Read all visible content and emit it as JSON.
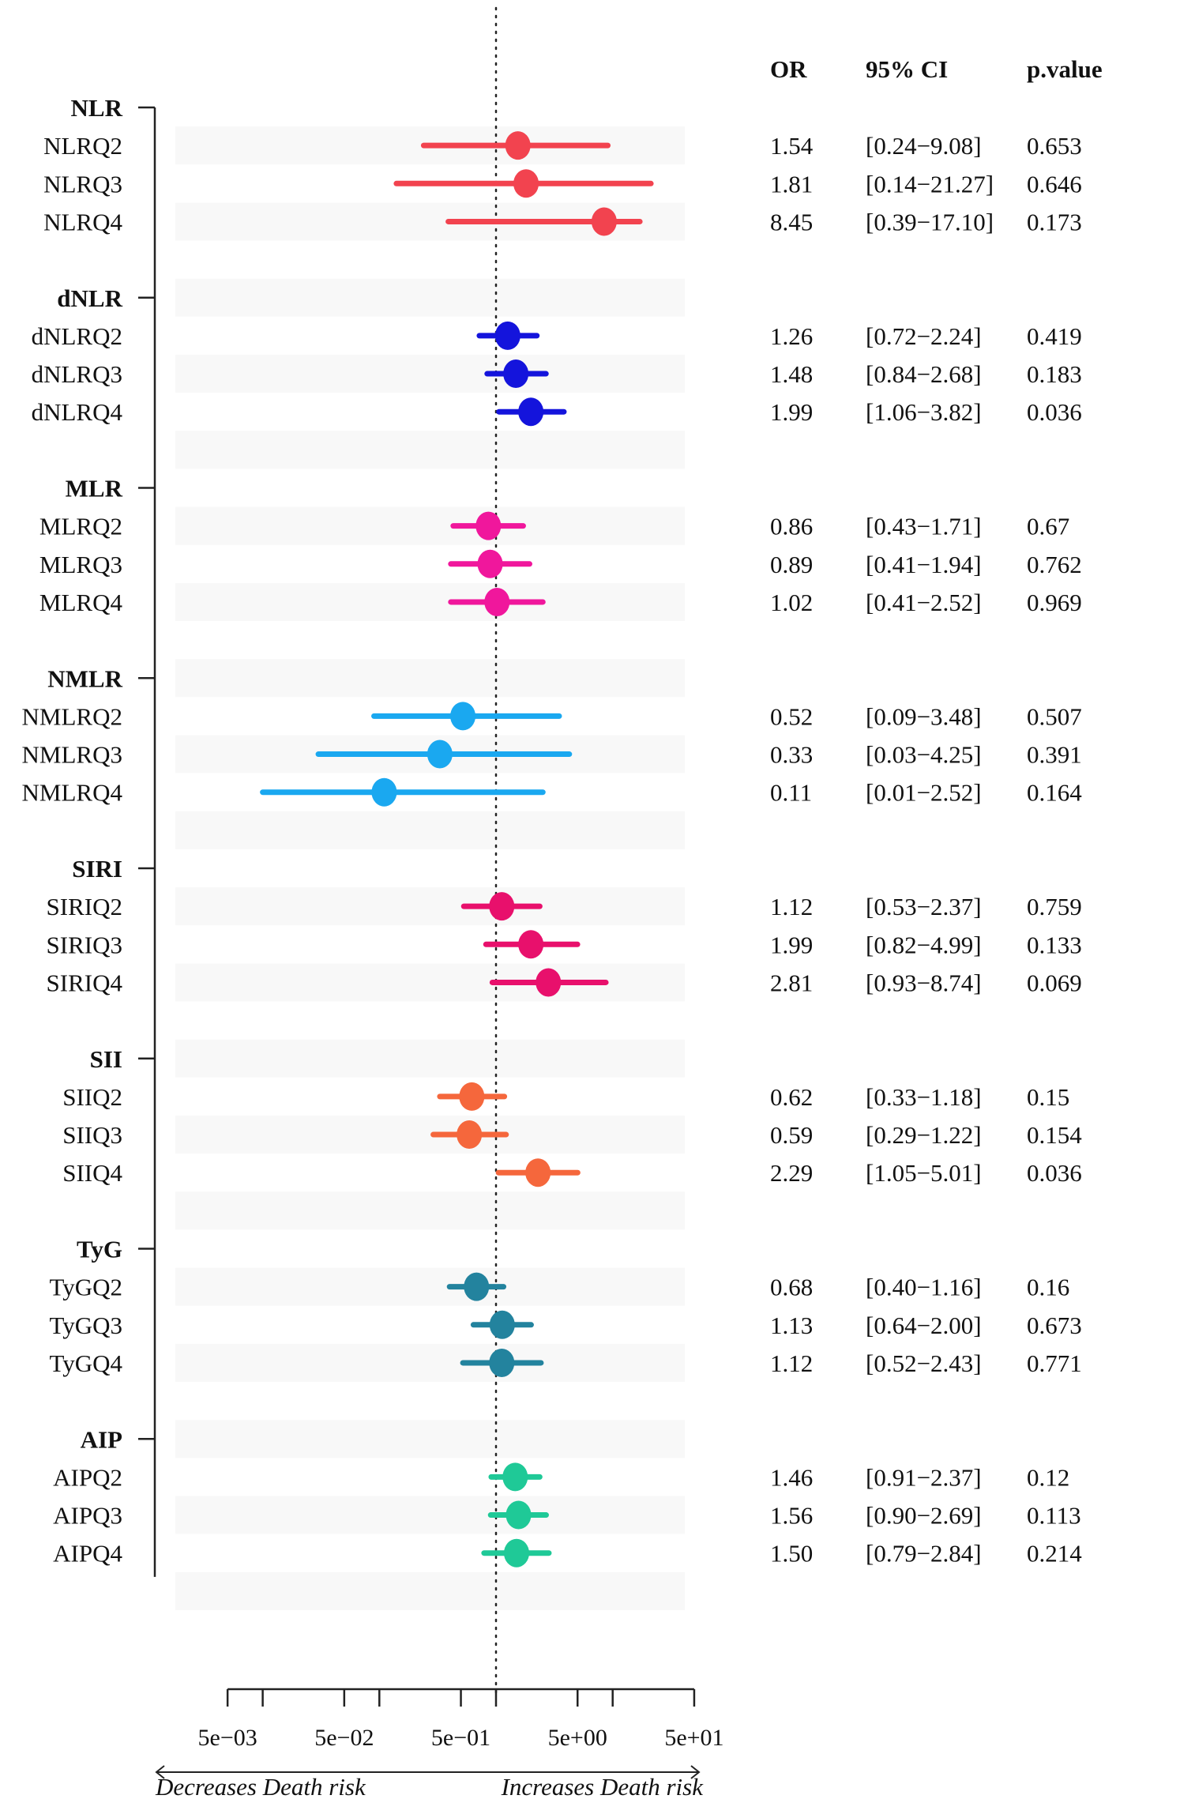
{
  "chart_data": {
    "type": "forest",
    "xscale": "log",
    "xlim": [
      0.005,
      50
    ],
    "reference_line": 1,
    "x_ticks": [
      0.005,
      0.01,
      0.05,
      0.1,
      0.5,
      1,
      5,
      10,
      50
    ],
    "x_tick_labels": [
      {
        "value": 0.005,
        "label": "5e−03"
      },
      {
        "value": 0.05,
        "label": "5e−02"
      },
      {
        "value": 0.5,
        "label": "5e−01"
      },
      {
        "value": 5,
        "label": "5e+00"
      },
      {
        "value": 50,
        "label": "5e+01"
      }
    ],
    "arrow_left_label": "Decreases Death risk",
    "arrow_right_label": "Increases Death risk",
    "table_headers": {
      "or": "OR",
      "ci": "95% CI",
      "p": "p.value"
    },
    "groups": [
      {
        "name": "NLR",
        "color": "#f2434f",
        "rows": [
          {
            "label": "NLRQ2",
            "or": 1.54,
            "lo": 0.24,
            "hi": 9.08,
            "or_text": "1.54",
            "ci_text": "[0.24−9.08]",
            "p_text": "0.653"
          },
          {
            "label": "NLRQ3",
            "or": 1.81,
            "lo": 0.14,
            "hi": 21.27,
            "or_text": "1.81",
            "ci_text": "[0.14−21.27]",
            "p_text": "0.646"
          },
          {
            "label": "NLRQ4",
            "or": 8.45,
            "lo": 0.39,
            "hi": 17.1,
            "or_text": "8.45",
            "ci_text": "[0.39−17.10]",
            "p_text": "0.173"
          }
        ]
      },
      {
        "name": "dNLR",
        "color": "#1414dc",
        "rows": [
          {
            "label": "dNLRQ2",
            "or": 1.26,
            "lo": 0.72,
            "hi": 2.24,
            "or_text": "1.26",
            "ci_text": "[0.72−2.24]",
            "p_text": "0.419"
          },
          {
            "label": "dNLRQ3",
            "or": 1.48,
            "lo": 0.84,
            "hi": 2.68,
            "or_text": "1.48",
            "ci_text": "[0.84−2.68]",
            "p_text": "0.183"
          },
          {
            "label": "dNLRQ4",
            "or": 1.99,
            "lo": 1.06,
            "hi": 3.82,
            "or_text": "1.99",
            "ci_text": "[1.06−3.82]",
            "p_text": "0.036"
          }
        ]
      },
      {
        "name": "MLR",
        "color": "#f0179c",
        "rows": [
          {
            "label": "MLRQ2",
            "or": 0.86,
            "lo": 0.43,
            "hi": 1.71,
            "or_text": "0.86",
            "ci_text": "[0.43−1.71]",
            "p_text": "0.67"
          },
          {
            "label": "MLRQ3",
            "or": 0.89,
            "lo": 0.41,
            "hi": 1.94,
            "or_text": "0.89",
            "ci_text": "[0.41−1.94]",
            "p_text": "0.762"
          },
          {
            "label": "MLRQ4",
            "or": 1.02,
            "lo": 0.41,
            "hi": 2.52,
            "or_text": "1.02",
            "ci_text": "[0.41−2.52]",
            "p_text": "0.969"
          }
        ]
      },
      {
        "name": "NMLR",
        "color": "#1aa8f0",
        "rows": [
          {
            "label": "NMLRQ2",
            "or": 0.52,
            "lo": 0.09,
            "hi": 3.48,
            "or_text": "0.52",
            "ci_text": "[0.09−3.48]",
            "p_text": "0.507"
          },
          {
            "label": "NMLRQ3",
            "or": 0.33,
            "lo": 0.03,
            "hi": 4.25,
            "or_text": "0.33",
            "ci_text": "[0.03−4.25]",
            "p_text": "0.391"
          },
          {
            "label": "NMLRQ4",
            "or": 0.11,
            "lo": 0.01,
            "hi": 2.52,
            "or_text": "0.11",
            "ci_text": "[0.01−2.52]",
            "p_text": "0.164"
          }
        ]
      },
      {
        "name": "SIRI",
        "color": "#e8106c",
        "rows": [
          {
            "label": "SIRIQ2",
            "or": 1.12,
            "lo": 0.53,
            "hi": 2.37,
            "or_text": "1.12",
            "ci_text": "[0.53−2.37]",
            "p_text": "0.759"
          },
          {
            "label": "SIRIQ3",
            "or": 1.99,
            "lo": 0.82,
            "hi": 4.99,
            "or_text": "1.99",
            "ci_text": "[0.82−4.99]",
            "p_text": "0.133"
          },
          {
            "label": "SIRIQ4",
            "or": 2.81,
            "lo": 0.93,
            "hi": 8.74,
            "or_text": "2.81",
            "ci_text": "[0.93−8.74]",
            "p_text": "0.069"
          }
        ]
      },
      {
        "name": "SII",
        "color": "#f5673c",
        "rows": [
          {
            "label": "SIIQ2",
            "or": 0.62,
            "lo": 0.33,
            "hi": 1.18,
            "or_text": "0.62",
            "ci_text": "[0.33−1.18]",
            "p_text": "0.15"
          },
          {
            "label": "SIIQ3",
            "or": 0.59,
            "lo": 0.29,
            "hi": 1.22,
            "or_text": "0.59",
            "ci_text": "[0.29−1.22]",
            "p_text": "0.154"
          },
          {
            "label": "SIIQ4",
            "or": 2.29,
            "lo": 1.05,
            "hi": 5.01,
            "or_text": "2.29",
            "ci_text": "[1.05−5.01]",
            "p_text": "0.036"
          }
        ]
      },
      {
        "name": "TyG",
        "color": "#23839e",
        "rows": [
          {
            "label": "TyGQ2",
            "or": 0.68,
            "lo": 0.4,
            "hi": 1.16,
            "or_text": "0.68",
            "ci_text": "[0.40−1.16]",
            "p_text": "0.16"
          },
          {
            "label": "TyGQ3",
            "or": 1.13,
            "lo": 0.64,
            "hi": 2.0,
            "or_text": "1.13",
            "ci_text": "[0.64−2.00]",
            "p_text": "0.673"
          },
          {
            "label": "TyGQ4",
            "or": 1.12,
            "lo": 0.52,
            "hi": 2.43,
            "or_text": "1.12",
            "ci_text": "[0.52−2.43]",
            "p_text": "0.771"
          }
        ]
      },
      {
        "name": "AIP",
        "color": "#1fc997",
        "rows": [
          {
            "label": "AIPQ2",
            "or": 1.46,
            "lo": 0.91,
            "hi": 2.37,
            "or_text": "1.46",
            "ci_text": "[0.91−2.37]",
            "p_text": "0.12"
          },
          {
            "label": "AIPQ3",
            "or": 1.56,
            "lo": 0.9,
            "hi": 2.69,
            "or_text": "1.56",
            "ci_text": "[0.90−2.69]",
            "p_text": "0.113"
          },
          {
            "label": "AIPQ4",
            "or": 1.5,
            "lo": 0.79,
            "hi": 2.84,
            "or_text": "1.50",
            "ci_text": "[0.79−2.84]",
            "p_text": "0.214"
          }
        ]
      }
    ]
  }
}
